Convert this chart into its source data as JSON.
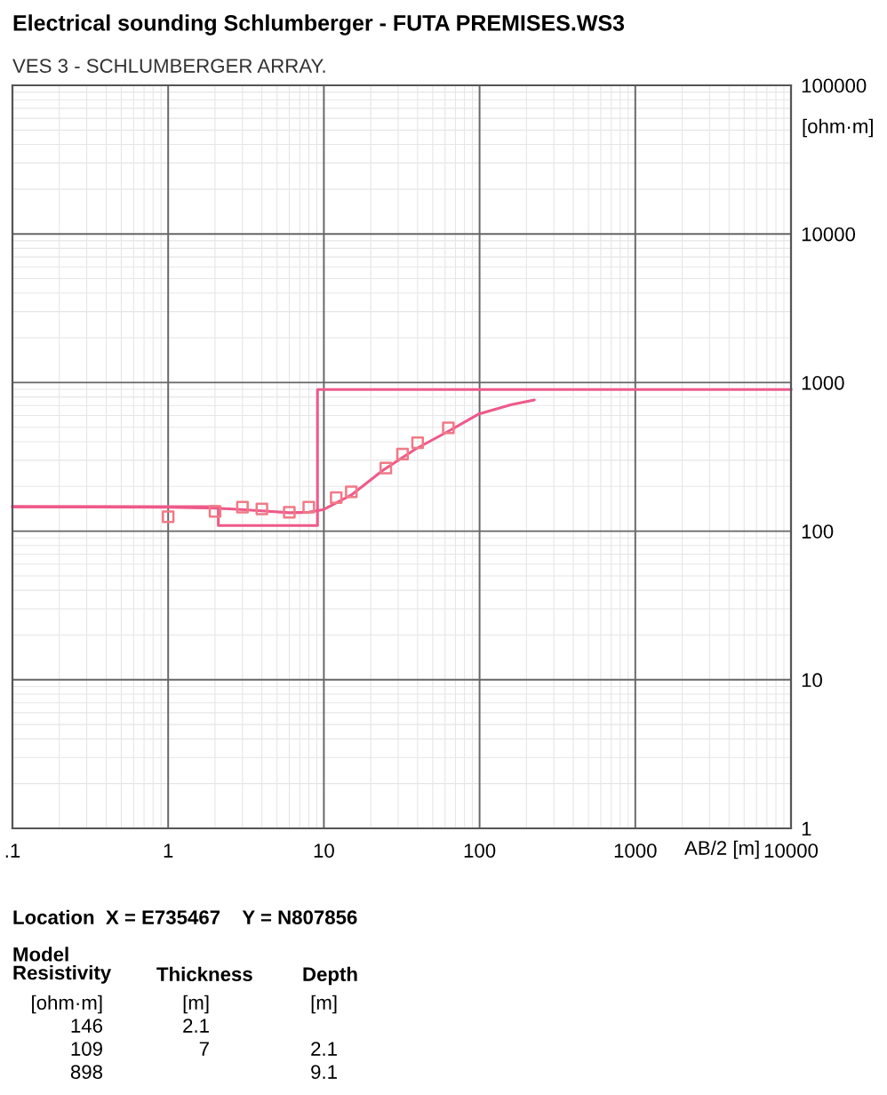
{
  "chart_data": {
    "type": "line",
    "title": "Electrical sounding Schlumberger - FUTA PREMISES.WS3",
    "subtitle": "VES 3 - SCHLUMBERGER ARRAY.",
    "xlabel": "AB/2 [m]",
    "ylabel": "[ohm·m]",
    "log": "xy",
    "grid": true,
    "xlim": [
      0.1,
      10000
    ],
    "ylim": [
      1,
      100000
    ],
    "xticks": [
      {
        "value": 0.1,
        "label": ".1"
      },
      1,
      10,
      100,
      1000,
      10000
    ],
    "yticks": [
      1,
      10,
      100,
      1000,
      10000,
      100000
    ],
    "series": [
      {
        "type": "step",
        "color": "#ee5a8a",
        "x": [
          0.1,
          2.1,
          9.1,
          10000
        ],
        "values": [
          146,
          109,
          898,
          898
        ]
      },
      {
        "type": "scatter",
        "marker": "square",
        "color": "#f07a86",
        "x": [
          1,
          2,
          3,
          4,
          6,
          8,
          12,
          15,
          25,
          32,
          40,
          63
        ],
        "values": [
          125,
          136,
          145,
          141,
          134,
          145,
          168,
          184,
          266,
          330,
          393,
          495
        ]
      },
      {
        "type": "line",
        "color": "#ee5a8a",
        "x": [
          0.1,
          1,
          2,
          4,
          6,
          8,
          10,
          15,
          24,
          39,
          63,
          98,
          160,
          225
        ],
        "values": [
          146,
          145,
          143,
          137,
          133,
          134,
          140,
          175,
          257,
          358,
          470,
          612,
          710,
          764
        ]
      }
    ],
    "annotations": [
      "Location  X = E735467    Y = N807856",
      "Model\nResistivity",
      "Thickness",
      "Depth",
      "[ohm·m]",
      "[m]",
      "[m]",
      "146",
      "2.1",
      "109",
      "7",
      "2.1",
      "898",
      "9.1"
    ]
  }
}
